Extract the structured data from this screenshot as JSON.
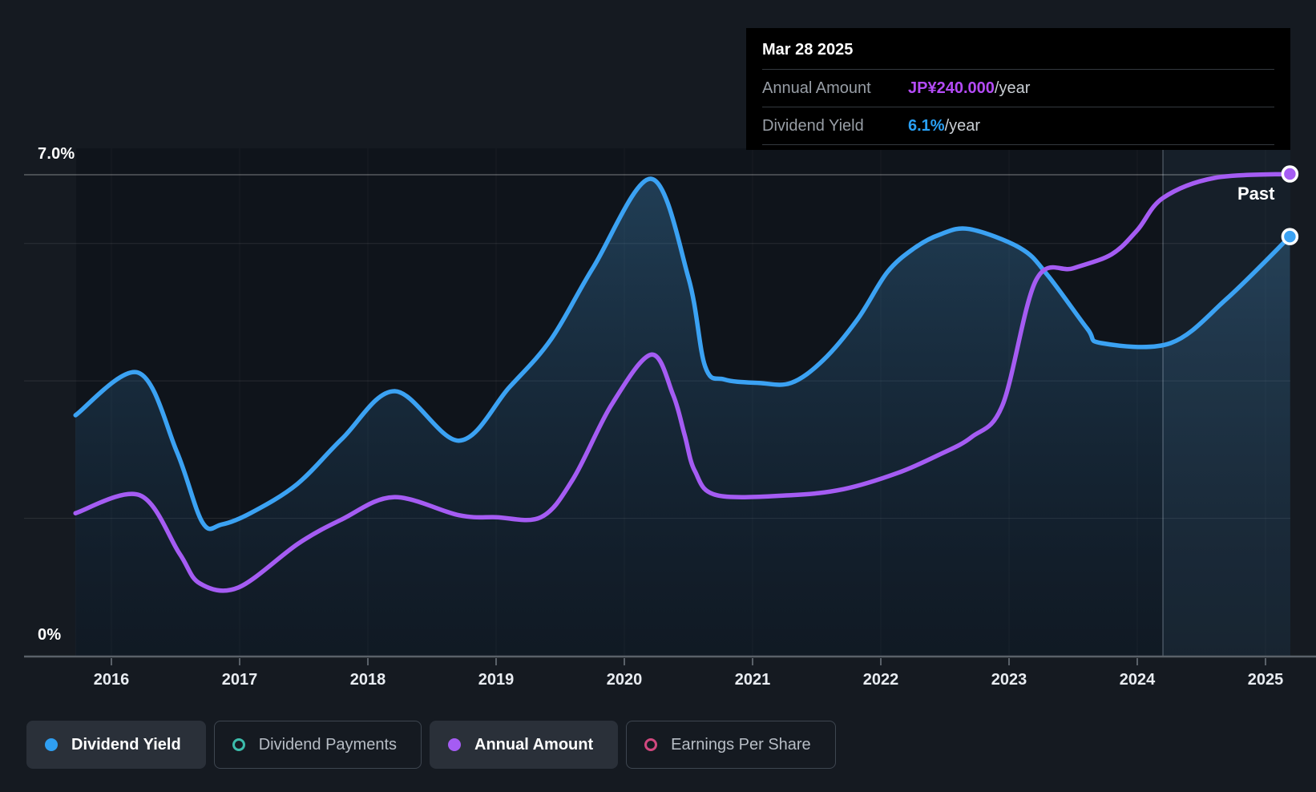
{
  "page": {
    "background": "#151a21"
  },
  "labels": {
    "past": "Past",
    "y_axis_max": "7.0%",
    "y_axis_min": "0%"
  },
  "tooltip": {
    "date": "Mar 28 2025",
    "rows": [
      {
        "label": "Annual Amount",
        "value": "JP¥240.000",
        "suffix": "/year",
        "color": "#b44bf7"
      },
      {
        "label": "Dividend Yield",
        "value": "6.1%",
        "suffix": "/year",
        "color": "#29a0f5"
      }
    ]
  },
  "legend": {
    "items": [
      {
        "label": "Dividend Yield",
        "color": "#2f9ff2",
        "style": "filled",
        "active": true
      },
      {
        "label": "Dividend Payments",
        "color": "#3cbcab",
        "style": "ring",
        "active": false
      },
      {
        "label": "Annual Amount",
        "color": "#a55cf3",
        "style": "filled",
        "active": true
      },
      {
        "label": "Earnings Per Share",
        "color": "#d1487f",
        "style": "ring",
        "active": false
      }
    ]
  },
  "chart_data": {
    "type": "area",
    "x_ticks": [
      2016,
      2017,
      2018,
      2019,
      2020,
      2021,
      2022,
      2023,
      2024,
      2025
    ],
    "x_range": [
      2015.72,
      2025.19
    ],
    "y_axis": {
      "unit": "%",
      "lim": [
        0,
        7
      ],
      "max_label": "7.0%",
      "min_label": "0%",
      "gridlines_pct": [
        7,
        6,
        4,
        2
      ]
    },
    "past_divider_x": 2024.2,
    "past_region_label": "Past",
    "legend_position": "bottom-left",
    "series": [
      {
        "name": "Dividend Yield",
        "axis": "percent",
        "unit": "%",
        "color": "#3ba2f3",
        "fill": true,
        "last_value": 6.1,
        "points": [
          [
            2015.72,
            3.5
          ],
          [
            2016.21,
            4.12
          ],
          [
            2016.51,
            2.97
          ],
          [
            2016.71,
            1.94
          ],
          [
            2016.86,
            1.91
          ],
          [
            2017.09,
            2.08
          ],
          [
            2017.45,
            2.5
          ],
          [
            2017.8,
            3.16
          ],
          [
            2018.21,
            3.85
          ],
          [
            2018.71,
            3.13
          ],
          [
            2019.1,
            3.9
          ],
          [
            2019.43,
            4.61
          ],
          [
            2019.76,
            5.66
          ],
          [
            2020.21,
            6.94
          ],
          [
            2020.5,
            5.5
          ],
          [
            2020.63,
            4.21
          ],
          [
            2020.78,
            4.02
          ],
          [
            2021.05,
            3.97
          ],
          [
            2021.3,
            3.97
          ],
          [
            2021.55,
            4.3
          ],
          [
            2021.82,
            4.9
          ],
          [
            2022.05,
            5.58
          ],
          [
            2022.26,
            5.93
          ],
          [
            2022.46,
            6.13
          ],
          [
            2022.69,
            6.21
          ],
          [
            2023.09,
            5.93
          ],
          [
            2023.3,
            5.54
          ],
          [
            2023.61,
            4.76
          ],
          [
            2023.72,
            4.55
          ],
          [
            2024.26,
            4.55
          ],
          [
            2024.7,
            5.2
          ],
          [
            2025.19,
            6.1
          ]
        ]
      },
      {
        "name": "Annual Amount",
        "axis": "amount",
        "unit": "JP¥",
        "color": "#a55cf3",
        "fill": false,
        "last_value": 240,
        "points": [
          [
            2015.72,
            71
          ],
          [
            2016.22,
            80
          ],
          [
            2016.53,
            51
          ],
          [
            2016.69,
            36
          ],
          [
            2016.99,
            34
          ],
          [
            2017.46,
            56
          ],
          [
            2017.8,
            68
          ],
          [
            2018.2,
            79
          ],
          [
            2018.71,
            70
          ],
          [
            2019.0,
            69
          ],
          [
            2019.35,
            69
          ],
          [
            2019.6,
            88
          ],
          [
            2019.9,
            125
          ],
          [
            2020.21,
            150
          ],
          [
            2020.38,
            130
          ],
          [
            2020.47,
            110
          ],
          [
            2020.55,
            92
          ],
          [
            2020.72,
            80
          ],
          [
            2021.3,
            80
          ],
          [
            2021.71,
            83
          ],
          [
            2022.13,
            91
          ],
          [
            2022.45,
            100
          ],
          [
            2022.71,
            109
          ],
          [
            2022.95,
            125
          ],
          [
            2023.21,
            187
          ],
          [
            2023.5,
            193
          ],
          [
            2023.8,
            200
          ],
          [
            2024.0,
            212
          ],
          [
            2024.2,
            228
          ],
          [
            2024.6,
            238
          ],
          [
            2025.19,
            240
          ]
        ]
      }
    ]
  }
}
